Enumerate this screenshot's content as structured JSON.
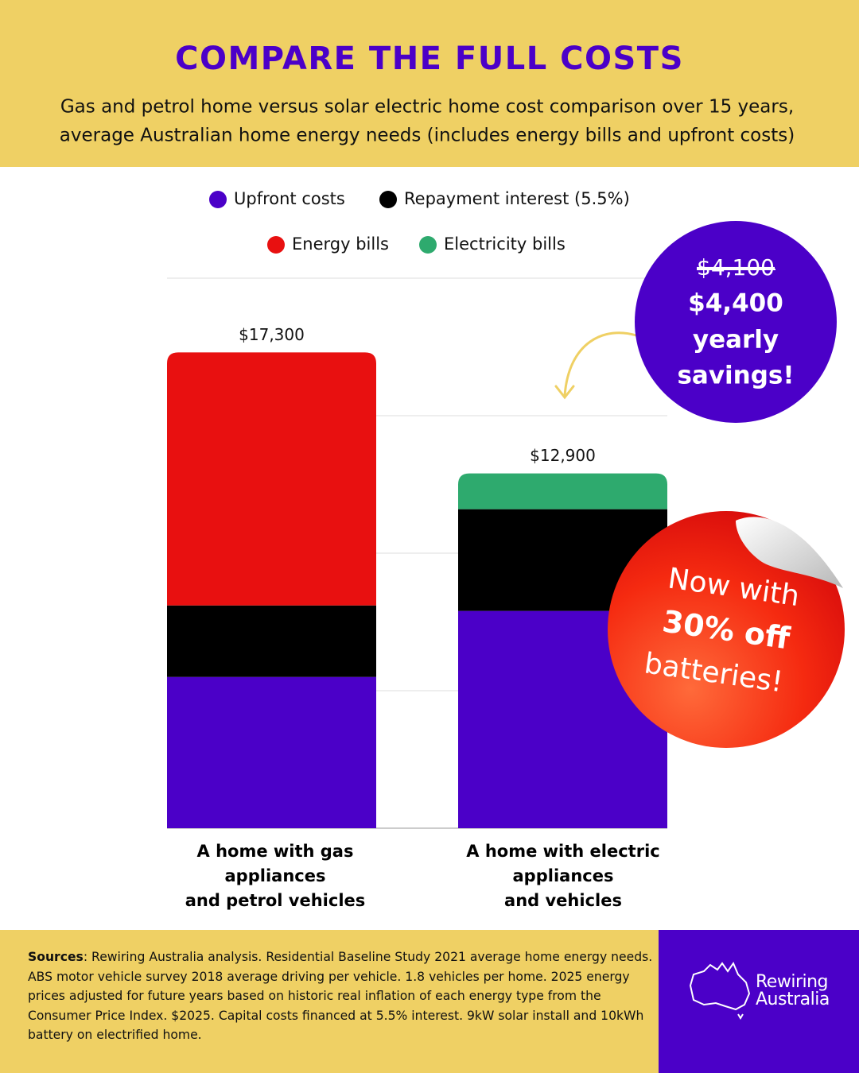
{
  "chart_data": {
    "type": "stacked-bar",
    "title": "COMPARE THE FULL COSTS",
    "subtitle": [
      "Gas and petrol home versus solar electric home cost comparison over 15 years,",
      "average Australian home energy needs (includes energy bills and upfront costs)"
    ],
    "categories": [
      "A home with gas appliances\nand petrol vehicles",
      "A home with electric appliances\nand vehicles"
    ],
    "series": [
      {
        "name": "Upfront costs",
        "color": "#4b00c8",
        "values": [
          5500,
          7900
        ]
      },
      {
        "name": "Repayment interest (5.5%)",
        "color": "#000000",
        "values": [
          2600,
          3700
        ]
      },
      {
        "name": "Energy bills",
        "color": "#e81010",
        "values": [
          9200,
          null
        ]
      },
      {
        "name": "Electricity bills",
        "color": "#2eaa6e",
        "values": [
          null,
          1300
        ]
      }
    ],
    "totals": {
      "values": [
        17300,
        12900
      ],
      "value_labels": [
        "$17,300",
        "$12,900"
      ]
    },
    "ylim": [
      0,
      20000
    ],
    "yticks": [
      0,
      5000,
      10000,
      15000,
      20000
    ],
    "grid": true,
    "savings_badge": {
      "old": "$4,100",
      "new": "$4,400",
      "lines": [
        "yearly",
        "savings!"
      ]
    },
    "sticker": [
      "Now with",
      "30% off",
      "batteries!"
    ],
    "sources_label": "Sources",
    "sources_text": ": Rewiring Australia analysis. Residential Baseline Study 2021 average home energy needs. ABS motor vehicle survey 2018 average driving per vehicle. 1.8 vehicles per home. 2025 energy prices adjusted for future years based on historic real inflation of each energy type from the Consumer Price Index. $2025. Capital costs financed at 5.5% interest. 9kW solar install and 10kWh battery on electrified home.",
    "logo": "Rewiring\nAustralia"
  }
}
